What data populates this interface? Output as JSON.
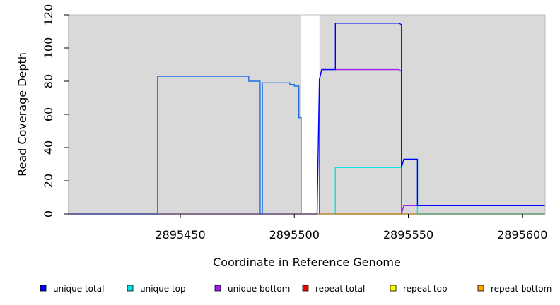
{
  "chart_data": {
    "type": "line",
    "xlabel": "Coordinate in Reference Genome",
    "ylabel": "Read Coverage Depth",
    "xlim": [
      2895401,
      2895610
    ],
    "ylim": [
      0,
      120
    ],
    "x_ticks": [
      2895450,
      2895500,
      2895550,
      2895600
    ],
    "y_ticks": [
      0,
      20,
      40,
      60,
      80,
      100,
      120
    ],
    "grid": false,
    "background_color": "#d9d9d9",
    "uncovered_regions": [
      [
        2895503,
        2895511
      ]
    ],
    "legend_position": "bottom",
    "series": [
      {
        "name": "unique total",
        "color": "#0000ff",
        "points": [
          [
            2895401,
            0
          ],
          [
            2895510,
            0
          ],
          [
            2895511,
            81
          ],
          [
            2895512,
            87
          ],
          [
            2895518,
            87
          ],
          [
            2895518,
            115
          ],
          [
            2895546,
            115
          ],
          [
            2895547,
            114
          ],
          [
            2895547,
            28
          ],
          [
            2895548,
            33
          ],
          [
            2895554,
            33
          ],
          [
            2895554,
            5
          ],
          [
            2895610,
            5
          ]
        ]
      },
      {
        "name": "unique top",
        "color": "#00e5e5",
        "points": [
          [
            2895518,
            0
          ],
          [
            2895518,
            28
          ],
          [
            2895547,
            28
          ],
          [
            2895548,
            33
          ],
          [
            2895554,
            33
          ],
          [
            2895554,
            0
          ],
          [
            2895610,
            0
          ]
        ]
      },
      {
        "name": "unique bottom",
        "color": "#a020f0",
        "points": [
          [
            2895511,
            0
          ],
          [
            2895511,
            81
          ],
          [
            2895512,
            87
          ],
          [
            2895546,
            87
          ],
          [
            2895547,
            86
          ],
          [
            2895547,
            0
          ],
          [
            2895548,
            5
          ],
          [
            2895610,
            5
          ]
        ]
      },
      {
        "name": "repeat total",
        "color": "#ff0000",
        "points": [
          [
            2895401,
            0
          ],
          [
            2895610,
            0
          ]
        ]
      },
      {
        "name": "repeat top",
        "color": "#ffff00",
        "points": [
          [
            2895401,
            0
          ],
          [
            2895610,
            0
          ]
        ]
      },
      {
        "name": "repeat bottom",
        "color": "#ffa500",
        "points": [
          [
            2895518,
            0
          ],
          [
            2895547,
            0
          ]
        ]
      },
      {
        "name": "",
        "color": "#1e6fe6",
        "points": [
          [
            2895401,
            0
          ],
          [
            2895440,
            0
          ],
          [
            2895440,
            83
          ],
          [
            2895480,
            83
          ],
          [
            2895480,
            80
          ],
          [
            2895485,
            80
          ],
          [
            2895485,
            0
          ],
          [
            2895486,
            0
          ],
          [
            2895486,
            79
          ],
          [
            2895498,
            79
          ],
          [
            2895498,
            78
          ],
          [
            2895500,
            78
          ],
          [
            2895500,
            77
          ],
          [
            2895502,
            77
          ],
          [
            2895502,
            58
          ],
          [
            2895503,
            58
          ],
          [
            2895503,
            0
          ]
        ]
      }
    ]
  }
}
